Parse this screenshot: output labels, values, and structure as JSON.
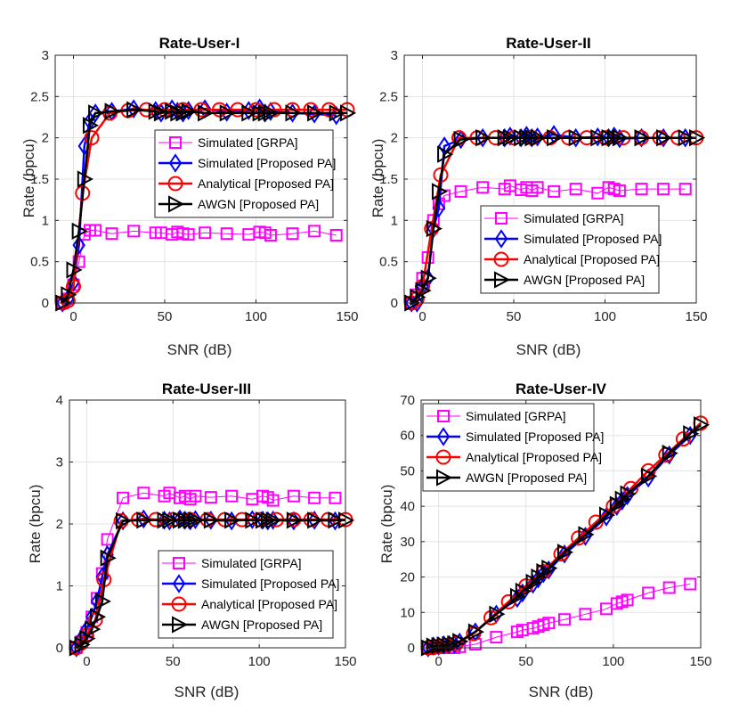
{
  "chart_data": [
    {
      "type": "line",
      "title": "Rate-User-I",
      "xlabel": "SNR (dB)",
      "ylabel": "Rate (bpcu)",
      "xlim": [
        -10,
        150
      ],
      "ylim": [
        0,
        3
      ],
      "xticks": [
        0,
        50,
        100,
        150
      ],
      "yticks": [
        0,
        0.5,
        1,
        1.5,
        2,
        2.5,
        3
      ],
      "legend_position": "right-middle",
      "series": [
        {
          "name": "Simulated [GRPA]",
          "color": "#ff00ff",
          "marker": "square",
          "x": [
            -6,
            -3,
            0,
            3,
            6,
            9,
            12,
            21,
            33,
            45,
            48,
            54,
            57,
            60,
            63,
            72,
            84,
            96,
            102,
            105,
            108,
            120,
            132,
            144
          ],
          "y": [
            0,
            0.05,
            0.22,
            0.5,
            0.83,
            0.88,
            0.88,
            0.84,
            0.87,
            0.85,
            0.85,
            0.83,
            0.86,
            0.84,
            0.83,
            0.85,
            0.84,
            0.83,
            0.86,
            0.85,
            0.82,
            0.84,
            0.87,
            0.82
          ]
        },
        {
          "name": "Simulated [Proposed PA]",
          "color": "#0000ff",
          "marker": "diamond",
          "x": [
            -6,
            -3,
            0,
            3,
            6,
            9,
            12,
            21,
            33,
            45,
            48,
            54,
            57,
            60,
            63,
            72,
            84,
            96,
            102,
            105,
            108,
            120,
            132,
            144
          ],
          "y": [
            0,
            0.05,
            0.25,
            0.7,
            1.9,
            2.2,
            2.3,
            2.32,
            2.35,
            2.33,
            2.3,
            2.35,
            2.32,
            2.3,
            2.33,
            2.35,
            2.31,
            2.33,
            2.36,
            2.3,
            2.32,
            2.3,
            2.29,
            2.27
          ]
        },
        {
          "name": "Analytical [Proposed PA]",
          "color": "#ff0000",
          "marker": "circle",
          "x": [
            -6,
            -3,
            0,
            5,
            10,
            20,
            30,
            40,
            50,
            60,
            70,
            80,
            90,
            100,
            110,
            120,
            130,
            140,
            150
          ],
          "y": [
            0,
            0.03,
            0.2,
            1.33,
            2.0,
            2.3,
            2.33,
            2.34,
            2.34,
            2.34,
            2.34,
            2.34,
            2.34,
            2.34,
            2.34,
            2.34,
            2.34,
            2.34,
            2.34
          ]
        },
        {
          "name": "AWGN [Proposed PA]",
          "color": "#000000",
          "marker": "triangle-right",
          "x": [
            -6,
            -3,
            0,
            3,
            6,
            9,
            12,
            21,
            33,
            45,
            48,
            54,
            57,
            60,
            63,
            72,
            84,
            96,
            102,
            105,
            108,
            120,
            132,
            144,
            150
          ],
          "y": [
            0,
            0.1,
            0.4,
            0.87,
            1.5,
            2.15,
            2.3,
            2.32,
            2.34,
            2.32,
            2.3,
            2.32,
            2.3,
            2.3,
            2.32,
            2.3,
            2.3,
            2.3,
            2.3,
            2.3,
            2.3,
            2.3,
            2.3,
            2.3,
            2.3
          ]
        }
      ]
    },
    {
      "type": "line",
      "title": "Rate-User-II",
      "xlabel": "SNR (dB)",
      "ylabel": "Rate (bpcu)",
      "xlim": [
        -10,
        150
      ],
      "ylim": [
        0,
        3
      ],
      "xticks": [
        0,
        50,
        100,
        150
      ],
      "yticks": [
        0,
        0.5,
        1,
        1.5,
        2,
        2.5,
        3
      ],
      "legend_position": "right-middle",
      "series": [
        {
          "name": "Simulated [GRPA]",
          "color": "#ff00ff",
          "marker": "square",
          "x": [
            -6,
            -3,
            0,
            3,
            6,
            9,
            12,
            21,
            33,
            45,
            48,
            54,
            57,
            60,
            63,
            72,
            84,
            96,
            102,
            105,
            108,
            120,
            132,
            144
          ],
          "y": [
            0,
            0.1,
            0.3,
            0.55,
            1.0,
            1.2,
            1.3,
            1.35,
            1.4,
            1.38,
            1.42,
            1.37,
            1.4,
            1.36,
            1.4,
            1.35,
            1.38,
            1.33,
            1.4,
            1.38,
            1.36,
            1.38,
            1.38,
            1.38
          ]
        },
        {
          "name": "Simulated [Proposed PA]",
          "color": "#0000ff",
          "marker": "diamond",
          "x": [
            -6,
            -3,
            0,
            3,
            6,
            9,
            12,
            21,
            33,
            45,
            48,
            54,
            57,
            60,
            63,
            72,
            84,
            96,
            102,
            105,
            108,
            120,
            132,
            144
          ],
          "y": [
            0,
            0.0,
            0.2,
            0.3,
            0.9,
            1.15,
            1.9,
            1.98,
            2.0,
            2.0,
            2.02,
            2.0,
            2.03,
            2.0,
            2.01,
            2.04,
            2.0,
            2.01,
            2.0,
            2.02,
            1.99,
            2.0,
            2.0,
            2.0
          ]
        },
        {
          "name": "Analytical [Proposed PA]",
          "color": "#ff0000",
          "marker": "circle",
          "x": [
            -6,
            -3,
            0,
            5,
            10,
            20,
            30,
            40,
            50,
            60,
            70,
            80,
            90,
            100,
            110,
            120,
            130,
            140,
            150
          ],
          "y": [
            0,
            0.05,
            0.2,
            0.9,
            1.55,
            2.0,
            2.0,
            2.0,
            2.0,
            2.0,
            2.0,
            2.0,
            2.0,
            2.0,
            2.0,
            2.0,
            2.0,
            2.0,
            2.0
          ]
        },
        {
          "name": "AWGN [Proposed PA]",
          "color": "#000000",
          "marker": "triangle-right",
          "x": [
            -6,
            -3,
            0,
            3,
            6,
            9,
            12,
            21,
            33,
            45,
            48,
            54,
            57,
            60,
            63,
            72,
            84,
            96,
            102,
            105,
            108,
            120,
            132,
            144,
            150
          ],
          "y": [
            0,
            0.07,
            0.15,
            0.3,
            0.9,
            1.35,
            1.8,
            1.98,
            2.0,
            2.0,
            2.0,
            2.0,
            2.0,
            2.0,
            2.0,
            2.0,
            2.0,
            2.0,
            2.0,
            2.0,
            2.0,
            2.0,
            2.0,
            2.0,
            2.0
          ]
        }
      ]
    },
    {
      "type": "line",
      "title": "Rate-User-III",
      "xlabel": "SNR (dB)",
      "ylabel": "Rate (bpcu)",
      "xlim": [
        -10,
        150
      ],
      "ylim": [
        0,
        4
      ],
      "xticks": [
        0,
        50,
        100,
        150
      ],
      "yticks": [
        0,
        1,
        2,
        3,
        4
      ],
      "legend_position": "right-bottom",
      "series": [
        {
          "name": "Simulated [GRPA]",
          "color": "#ff00ff",
          "marker": "square",
          "x": [
            -6,
            -3,
            0,
            3,
            6,
            9,
            12,
            21,
            33,
            45,
            48,
            54,
            57,
            60,
            63,
            72,
            84,
            96,
            102,
            105,
            108,
            120,
            132,
            144
          ],
          "y": [
            0,
            0.1,
            0.25,
            0.5,
            0.8,
            1.2,
            1.75,
            2.42,
            2.5,
            2.45,
            2.5,
            2.42,
            2.45,
            2.4,
            2.45,
            2.43,
            2.45,
            2.4,
            2.45,
            2.43,
            2.38,
            2.45,
            2.42,
            2.42
          ]
        },
        {
          "name": "Simulated [Proposed PA]",
          "color": "#0000ff",
          "marker": "diamond",
          "x": [
            -6,
            -3,
            0,
            3,
            6,
            9,
            12,
            21,
            33,
            45,
            48,
            54,
            57,
            60,
            63,
            72,
            84,
            96,
            102,
            105,
            108,
            120,
            132,
            144
          ],
          "y": [
            0,
            0.15,
            0.3,
            0.5,
            0.75,
            1.15,
            1.5,
            2.05,
            2.08,
            2.06,
            2.05,
            2.08,
            2.06,
            2.05,
            2.07,
            2.06,
            2.05,
            2.07,
            2.06,
            2.05,
            2.06,
            2.05,
            2.06,
            2.05
          ]
        },
        {
          "name": "Analytical [Proposed PA]",
          "color": "#ff0000",
          "marker": "circle",
          "x": [
            -6,
            -3,
            0,
            5,
            10,
            20,
            30,
            40,
            50,
            60,
            70,
            80,
            90,
            100,
            110,
            120,
            130,
            140,
            150
          ],
          "y": [
            0,
            0.08,
            0.2,
            0.45,
            1.1,
            2.05,
            2.07,
            2.07,
            2.07,
            2.07,
            2.07,
            2.07,
            2.07,
            2.07,
            2.07,
            2.07,
            2.07,
            2.07,
            2.07
          ]
        },
        {
          "name": "AWGN [Proposed PA]",
          "color": "#000000",
          "marker": "triangle-right",
          "x": [
            -6,
            -3,
            0,
            3,
            6,
            9,
            12,
            21,
            33,
            45,
            48,
            54,
            57,
            60,
            63,
            72,
            84,
            96,
            102,
            105,
            108,
            120,
            132,
            144,
            150
          ],
          "y": [
            0,
            0.05,
            0.15,
            0.3,
            0.5,
            0.75,
            1.45,
            2.05,
            2.06,
            2.06,
            2.06,
            2.06,
            2.06,
            2.06,
            2.06,
            2.06,
            2.06,
            2.06,
            2.06,
            2.06,
            2.06,
            2.06,
            2.06,
            2.06,
            2.06
          ]
        }
      ]
    },
    {
      "type": "line",
      "title": "Rate-User-IV",
      "xlabel": "SNR (dB)",
      "ylabel": "Rate (bpcu)",
      "xlim": [
        -10,
        150
      ],
      "ylim": [
        0,
        70
      ],
      "xticks": [
        0,
        50,
        100,
        150
      ],
      "yticks": [
        0,
        10,
        20,
        30,
        40,
        50,
        60,
        70
      ],
      "legend_position": "top-left",
      "series": [
        {
          "name": "Simulated [GRPA]",
          "color": "#ff00ff",
          "marker": "square",
          "x": [
            -6,
            -3,
            0,
            3,
            6,
            9,
            12,
            21,
            33,
            45,
            48,
            54,
            57,
            60,
            63,
            72,
            84,
            96,
            102,
            105,
            108,
            120,
            132,
            144
          ],
          "y": [
            0,
            0,
            0,
            0,
            0,
            0,
            0.3,
            1.0,
            3.0,
            4.5,
            5.0,
            5.5,
            6.0,
            6.5,
            7.0,
            8.0,
            9.5,
            11.0,
            12.5,
            13.0,
            13.5,
            15.5,
            17.0,
            18.0
          ]
        },
        {
          "name": "Simulated [Proposed PA]",
          "color": "#0000ff",
          "marker": "diamond",
          "x": [
            -6,
            -3,
            0,
            3,
            6,
            9,
            12,
            21,
            33,
            45,
            48,
            54,
            57,
            60,
            63,
            72,
            84,
            96,
            102,
            105,
            108,
            120,
            132,
            144
          ],
          "y": [
            0,
            0.5,
            0.5,
            0.8,
            0.9,
            1.0,
            1.6,
            4.5,
            9.5,
            14,
            15.5,
            18,
            19.5,
            21,
            22,
            26.5,
            31.5,
            37,
            40,
            41.5,
            43,
            48,
            54.5,
            60
          ]
        },
        {
          "name": "Analytical [Proposed PA]",
          "color": "#ff0000",
          "marker": "circle",
          "x": [
            -6,
            -3,
            0,
            5,
            10,
            20,
            30,
            40,
            50,
            60,
            70,
            80,
            90,
            100,
            110,
            120,
            130,
            140,
            150
          ],
          "y": [
            0,
            0.1,
            0.3,
            0.7,
            1.2,
            4.0,
            8.5,
            13.0,
            17.5,
            21.5,
            26.5,
            31.0,
            35.5,
            40.0,
            45.0,
            50.0,
            54.5,
            59.0,
            63.5
          ]
        },
        {
          "name": "AWGN [Proposed PA]",
          "color": "#000000",
          "marker": "triangle-right",
          "x": [
            -6,
            -3,
            0,
            3,
            6,
            9,
            12,
            21,
            33,
            45,
            48,
            54,
            57,
            60,
            63,
            72,
            84,
            96,
            102,
            105,
            108,
            120,
            132,
            144,
            150
          ],
          "y": [
            0,
            0.5,
            0.6,
            0.8,
            0.9,
            1.1,
            1.8,
            4.5,
            9.5,
            14.5,
            16,
            18.5,
            20,
            21.5,
            22.5,
            27,
            32,
            37.5,
            40.5,
            42,
            43.5,
            48.5,
            55,
            60.5,
            63
          ]
        }
      ]
    }
  ]
}
